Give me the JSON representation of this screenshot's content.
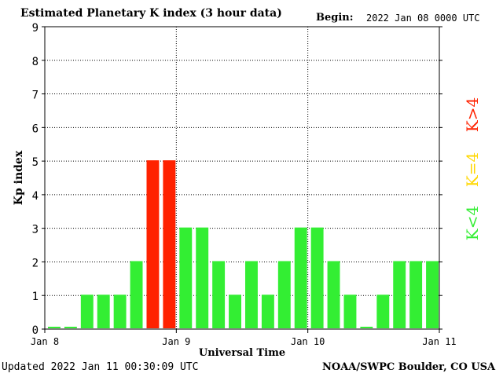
{
  "header": {
    "title": "Estimated Planetary K index (3 hour data)",
    "begin_label": "Begin:",
    "begin_value": "2022 Jan 08 0000 UTC"
  },
  "footer": {
    "updated": "Updated 2022 Jan 11 00:30:09 UTC",
    "credit": "NOAA/SWPC Boulder, CO USA"
  },
  "legend": [
    {
      "label": "K<4",
      "color": "#33ee33"
    },
    {
      "label": "K=4",
      "color": "#ffd700"
    },
    {
      "label": "K>4",
      "color": "#ff2200"
    }
  ],
  "chart_data": {
    "type": "bar",
    "title": "Estimated Planetary K index (3 hour data)",
    "xlabel": "Universal Time",
    "ylabel": "Kp index",
    "ylim": [
      0,
      9
    ],
    "yticks": [
      "0",
      "1",
      "2",
      "3",
      "4",
      "5",
      "6",
      "7",
      "8",
      "9"
    ],
    "xticks": [
      "Jan 8",
      "Jan 9",
      "Jan 10",
      "Jan 11"
    ],
    "grid": true,
    "values": [
      0,
      0,
      1,
      1,
      1,
      2,
      5,
      5,
      3,
      3,
      2,
      1,
      2,
      1,
      2,
      3,
      3,
      2,
      1,
      0,
      1,
      2,
      2,
      2
    ],
    "colors": {
      "low": "#33ee33",
      "equal": "#ffd700",
      "high": "#ff2200"
    }
  }
}
